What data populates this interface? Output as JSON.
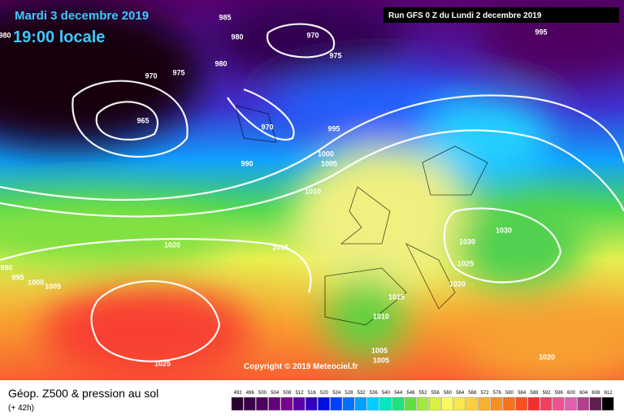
{
  "header": {
    "date": "Mardi 3 decembre 2019",
    "time": "19:00 locale",
    "run": "Run GFS 0 Z du Lundi 2 decembre 2019"
  },
  "copyright": "Copyright © 2019 Meteociel.fr",
  "footer": {
    "title": "Géop. Z500 & pression au sol",
    "lead": "(+ 42h)"
  },
  "isobar_labels": [
    "985",
    "980",
    "970",
    "975",
    "980",
    "970",
    "975",
    "965",
    "970",
    "995",
    "990",
    "1000",
    "1005",
    "1010",
    "1015",
    "1020",
    "1030",
    "1030",
    "1025",
    "1020",
    "1015",
    "1010",
    "1005",
    "1005",
    "1025",
    "1020",
    "995",
    "980",
    "990",
    "995",
    "1000",
    "1005"
  ],
  "colorbar": {
    "ticks": [
      492,
      496,
      500,
      504,
      508,
      512,
      516,
      520,
      524,
      528,
      532,
      536,
      540,
      544,
      548,
      552,
      556,
      560,
      564,
      568,
      572,
      576,
      580,
      584,
      588,
      592,
      596,
      600,
      604,
      608,
      612
    ],
    "colors": [
      "#2a0030",
      "#3c0048",
      "#500060",
      "#640078",
      "#780090",
      "#5a00a8",
      "#3000c0",
      "#0010e0",
      "#0040ff",
      "#0070ff",
      "#00a0ff",
      "#00d0ff",
      "#00e8c0",
      "#20e080",
      "#60e040",
      "#a0e840",
      "#d8f040",
      "#f8f860",
      "#f8e850",
      "#f8d040",
      "#f8b030",
      "#f89020",
      "#f87020",
      "#f85020",
      "#f03030",
      "#f04060",
      "#f05090",
      "#e060b0",
      "#b04090",
      "#602050",
      "#000000"
    ]
  }
}
